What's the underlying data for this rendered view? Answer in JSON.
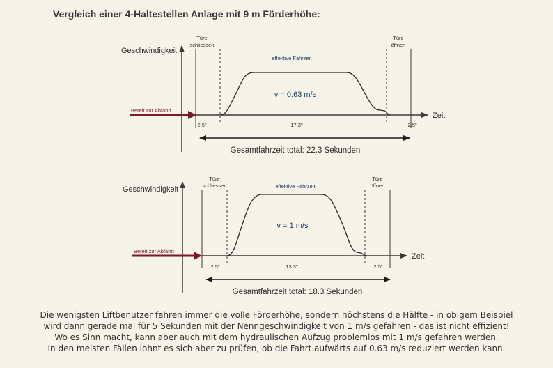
{
  "heading": "Vergleich einer 4-Haltestellen Anlage mit 9 m Förderhöhe:",
  "colors": {
    "arrow": "#7b1a2a",
    "curve": "#2a2a2a",
    "label_blue": "#1f3f66"
  },
  "diagrams": [
    {
      "y_label": "Geschwindigkeit",
      "x_label": "Zeit",
      "ready_label": "Bereit zur Abfahrt",
      "doors_close": [
        "Türe",
        "schliessen"
      ],
      "doors_open": [
        "Türe",
        "öffnen"
      ],
      "effective_label": "effektive Fahrzeit",
      "speed_label": "v = 0.63 m/s",
      "segments": [
        "2.5\"",
        "17.3\"",
        "2.5\""
      ],
      "total_label": "Gesamtfahrzeit total: 22.3 Sekunden"
    },
    {
      "y_label": "Geschwindigkeit",
      "x_label": "Zeit",
      "ready_label": "Bereit zur Abfahrt",
      "doors_close": [
        "Türe",
        "schliessen"
      ],
      "doors_open": [
        "Türe",
        "öffnen"
      ],
      "effective_label": "effektive Fahrzeit",
      "speed_label": "v = 1 m/s",
      "segments": [
        "2.5\"",
        "13.3\"",
        "2.5\""
      ],
      "total_label": "Gesamtfahrzeit total: 18.3 Sekunden"
    }
  ],
  "paragraph": [
    "Die wenigsten Liftbenutzer fahren immer die volle Förderhöhe, sondern höchstens die Hälfte - in obigem Beispiel",
    "wird dann gerade mal für 5 Sekunden mit der Nenngeschwindigkeit von 1 m/s gefahren - das ist nicht effizient!",
    "Wo es Sinn macht, kann aber auch mit dem hydraulischen Aufzug problemlos mit 1 m/s gefahren werden.",
    "In den meisten Fällen lohnt es sich aber zu prüfen, ob die Fahrt aufwärts auf 0.63 m/s reduziert werden kann."
  ]
}
